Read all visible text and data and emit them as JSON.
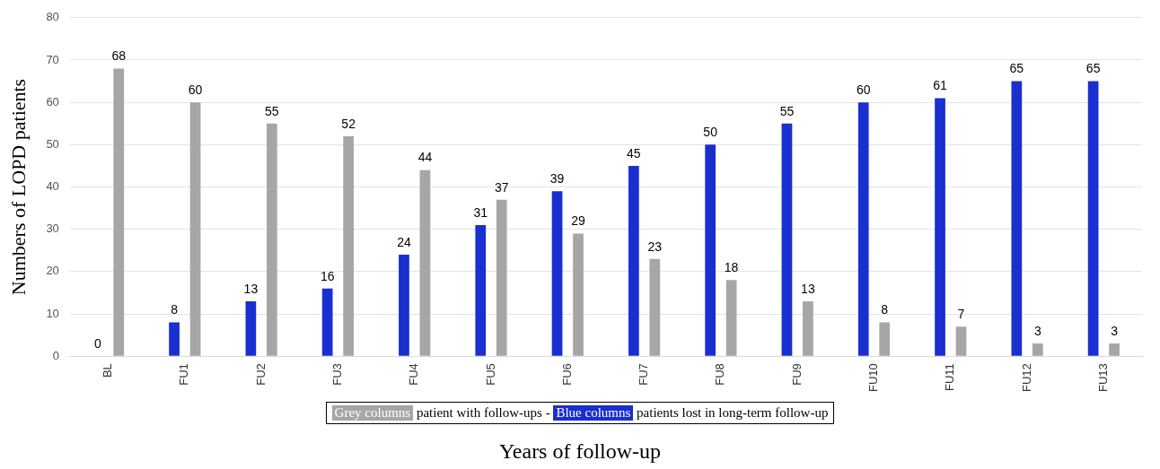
{
  "chart_data": {
    "type": "bar",
    "ylabel": "Numbers of LOPD patients",
    "xlabel": "Years of follow-up",
    "categories": [
      "BL",
      "FU1",
      "FU2",
      "FU3",
      "FU4",
      "FU5",
      "FU6",
      "FU7",
      "FU8",
      "FU9",
      "FU10",
      "FU11",
      "FU12",
      "FU13"
    ],
    "series": [
      {
        "name": "Blue columns",
        "color": "#1a2fd0",
        "values": [
          0,
          8,
          13,
          16,
          24,
          31,
          39,
          45,
          50,
          55,
          60,
          61,
          65,
          65
        ]
      },
      {
        "name": "Grey columns",
        "color": "#a6a6a6",
        "values": [
          68,
          60,
          55,
          52,
          44,
          37,
          29,
          23,
          18,
          13,
          8,
          7,
          3,
          3
        ]
      }
    ],
    "annotations": [
      "patients lost in long-term follow-up",
      "patient with follow-ups -"
    ],
    "ylim": [
      0,
      80
    ],
    "yticks": [
      0,
      10,
      20,
      30,
      40,
      50,
      60,
      70,
      80
    ],
    "grid": "y",
    "legend": "bottom",
    "data_labels": true
  }
}
